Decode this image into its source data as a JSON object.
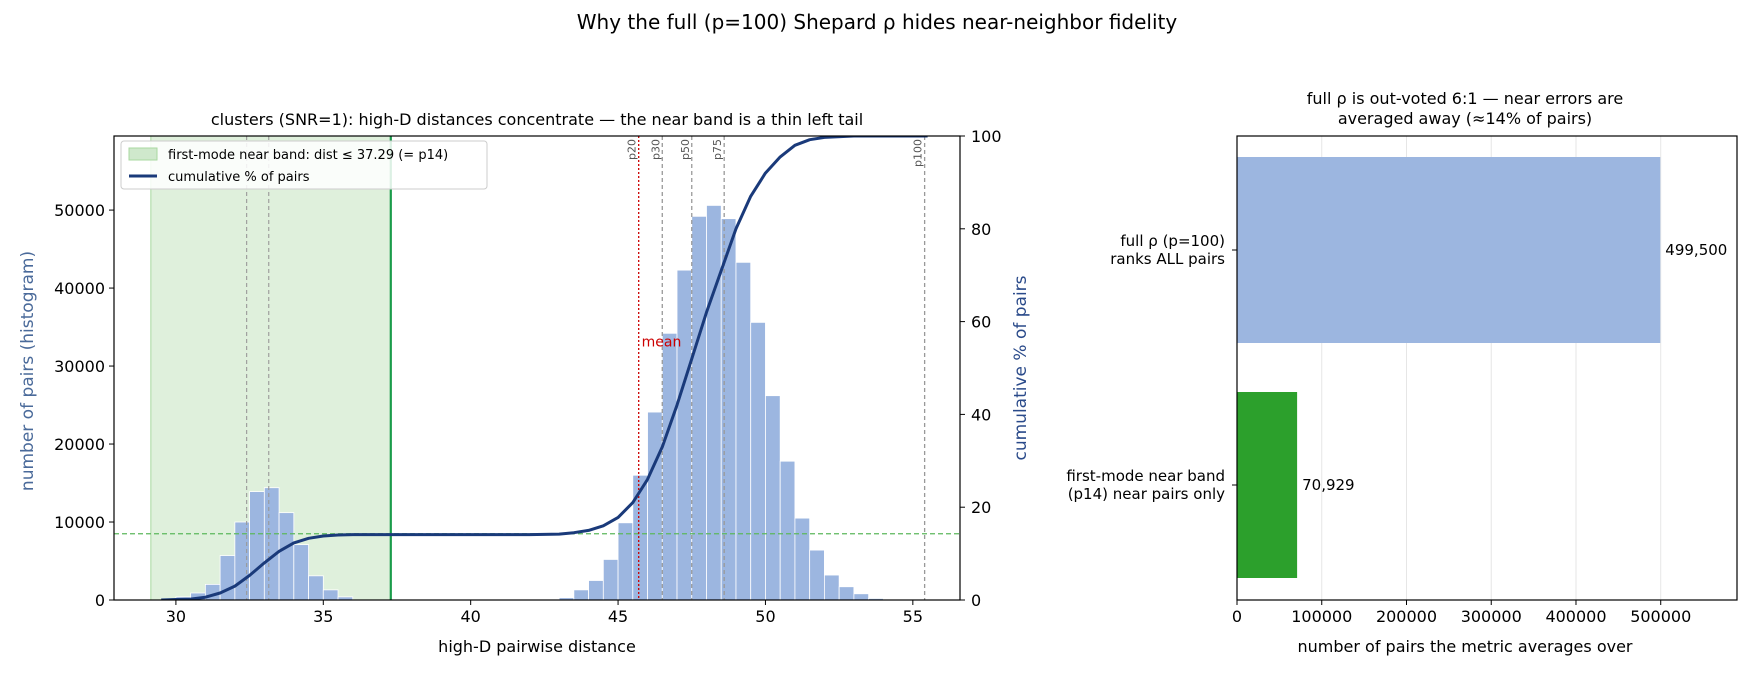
{
  "figure": {
    "suptitle": "Why the full (p=100) Shepard ρ hides near-neighbor fidelity"
  },
  "chart_data": [
    {
      "type": "bar",
      "subtype": "histogram-with-cumulative-line",
      "title": "clusters (SNR=1): high-D distances concentrate — the near band is a thin left tail",
      "xlabel": "high-D pairwise distance",
      "ylabel": "number of pairs (histogram)",
      "y2label": "cumulative % of pairs",
      "xlim": [
        27.9,
        56.6
      ],
      "ylim": [
        0,
        59500
      ],
      "y2lim": [
        0,
        100
      ],
      "xticks": [
        30,
        35,
        40,
        45,
        50,
        55
      ],
      "yticks": [
        0,
        10000,
        20000,
        30000,
        40000,
        50000
      ],
      "y2ticks": [
        0,
        20,
        40,
        60,
        80,
        100
      ],
      "grid": false,
      "legend_position": "upper-left",
      "legend": [
        {
          "label": "first-mode near band: dist ≤ 37.29 (= p14)",
          "kind": "patch",
          "color": "#cfe8cc"
        },
        {
          "label": "cumulative % of pairs",
          "kind": "line",
          "color": "#1a3a7a"
        }
      ],
      "near_band": {
        "from": 29.15,
        "to": 37.29
      },
      "threshold_line": 37.29,
      "reference_hline_count": 8500,
      "histogram": {
        "bin_width": 0.5,
        "bins": [
          {
            "x0": 30.0,
            "count": 400
          },
          {
            "x0": 30.5,
            "count": 900
          },
          {
            "x0": 31.0,
            "count": 2000
          },
          {
            "x0": 31.5,
            "count": 5700
          },
          {
            "x0": 32.0,
            "count": 10000
          },
          {
            "x0": 32.5,
            "count": 13900
          },
          {
            "x0": 33.0,
            "count": 14400
          },
          {
            "x0": 33.5,
            "count": 11200
          },
          {
            "x0": 34.0,
            "count": 7100
          },
          {
            "x0": 34.5,
            "count": 3100
          },
          {
            "x0": 35.0,
            "count": 1300
          },
          {
            "x0": 35.5,
            "count": 400
          },
          {
            "x0": 43.0,
            "count": 300
          },
          {
            "x0": 43.5,
            "count": 1300
          },
          {
            "x0": 44.0,
            "count": 2500
          },
          {
            "x0": 44.5,
            "count": 5200
          },
          {
            "x0": 45.0,
            "count": 9900
          },
          {
            "x0": 45.5,
            "count": 16000
          },
          {
            "x0": 46.0,
            "count": 24100
          },
          {
            "x0": 46.5,
            "count": 34200
          },
          {
            "x0": 47.0,
            "count": 42300
          },
          {
            "x0": 47.5,
            "count": 49200
          },
          {
            "x0": 48.0,
            "count": 50600
          },
          {
            "x0": 48.5,
            "count": 48900
          },
          {
            "x0": 49.0,
            "count": 43300
          },
          {
            "x0": 49.5,
            "count": 35600
          },
          {
            "x0": 50.0,
            "count": 26200
          },
          {
            "x0": 50.5,
            "count": 17800
          },
          {
            "x0": 51.0,
            "count": 10500
          },
          {
            "x0": 51.5,
            "count": 6400
          },
          {
            "x0": 52.0,
            "count": 3200
          },
          {
            "x0": 52.5,
            "count": 1700
          },
          {
            "x0": 53.0,
            "count": 800
          },
          {
            "x0": 53.5,
            "count": 200
          }
        ]
      },
      "cumulative": {
        "x": [
          29.5,
          30.0,
          30.5,
          31.0,
          31.5,
          32.0,
          32.5,
          33.0,
          33.5,
          34.0,
          34.5,
          35.0,
          35.5,
          36.0,
          38.0,
          40.0,
          42.0,
          43.0,
          43.5,
          44.0,
          44.5,
          45.0,
          45.5,
          46.0,
          46.5,
          47.0,
          47.5,
          48.0,
          48.5,
          49.0,
          49.5,
          50.0,
          50.5,
          51.0,
          51.5,
          52.0,
          53.0,
          55.5
        ],
        "y": [
          0,
          0.1,
          0.2,
          0.6,
          1.5,
          3.0,
          5.3,
          8.0,
          10.5,
          12.3,
          13.3,
          13.8,
          14.0,
          14.1,
          14.1,
          14.1,
          14.1,
          14.2,
          14.5,
          15.0,
          16.0,
          17.8,
          21.0,
          26.0,
          33.0,
          42.0,
          52.0,
          62.0,
          71.0,
          80.0,
          87.0,
          92.0,
          95.5,
          98.0,
          99.2,
          99.7,
          100.0,
          100.0
        ]
      },
      "percentile_lines": [
        {
          "label": "p20",
          "x": 45.7,
          "style": "dotted",
          "color": "#cc0000"
        },
        {
          "label": "p30",
          "x": 46.5,
          "style": "dashed",
          "color": "#999999"
        },
        {
          "label": "p50",
          "x": 47.5,
          "style": "dashed",
          "color": "#999999"
        },
        {
          "label": "p75",
          "x": 48.6,
          "style": "dashed",
          "color": "#999999"
        },
        {
          "label": "p100",
          "x": 55.4,
          "style": "dashed",
          "color": "#999999"
        }
      ],
      "near_band_vlines": [
        32.4,
        33.15
      ],
      "annotations": [
        {
          "text": "mean",
          "x": 45.8,
          "y": 32500,
          "color": "#cc0000"
        }
      ],
      "colors": {
        "bar": "#9cb6e0",
        "line": "#1a3a7a",
        "band": "#dff0dc",
        "threshold": "#1a9c4a",
        "hline": "#5cb85c",
        "ylabel": "#4a6a9a",
        "y2label": "#2a4a8a"
      }
    },
    {
      "type": "bar",
      "orientation": "horizontal",
      "title": "full ρ is out-voted 6:1 — near errors are\naveraged away (≈14% of pairs)",
      "title_lines": [
        "full ρ is out-voted 6:1 — near errors are",
        "averaged away (≈14% of pairs)"
      ],
      "xlabel": "number of pairs the metric averages over",
      "xlim": [
        0,
        590000
      ],
      "xticks": [
        0,
        100000,
        200000,
        300000,
        400000,
        500000
      ],
      "grid": "x",
      "categories": [
        "full ρ (p=100)\nranks ALL pairs",
        "first-mode near band\n(p14) near pairs only"
      ],
      "category_lines": [
        [
          "full ρ (p=100)",
          "ranks ALL pairs"
        ],
        [
          "first-mode near band",
          "(p14) near pairs only"
        ]
      ],
      "values": [
        499500,
        70929
      ],
      "value_labels": [
        "499,500",
        "70,929"
      ],
      "colors": [
        "#9cb6e0",
        "#2ca02c"
      ]
    }
  ]
}
